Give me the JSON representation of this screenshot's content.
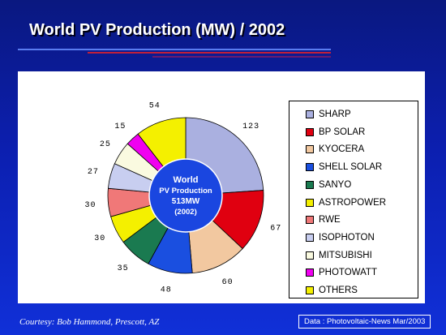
{
  "slide": {
    "title": "World PV Production (MW) / 2002",
    "courtesy": "Courtesy:  Bob Hammond, Prescott, AZ",
    "source": "Data : Photovoltaic-News Mar/2003"
  },
  "chart_data": {
    "type": "pie",
    "title": "World PV Production (MW) / 2002",
    "center_label": [
      "World",
      "PV Production",
      "513MW",
      "(2002)"
    ],
    "slices": [
      {
        "name": "SHARP",
        "value": 123,
        "label": "123",
        "color": "#aab0e0"
      },
      {
        "name": "BP SOLAR",
        "value": 67,
        "label": "67",
        "color": "#e00010"
      },
      {
        "name": "KYOCERA",
        "value": 60,
        "label": "60",
        "color": "#f2c8a0"
      },
      {
        "name": "SHELL SOLAR",
        "value": 48,
        "label": "48",
        "color": "#1a4fe0"
      },
      {
        "name": "SANYO",
        "value": 35,
        "label": "35",
        "color": "#1a7a50"
      },
      {
        "name": "ASTROPOWER",
        "value": 30,
        "label": "30",
        "color": "#f4f000"
      },
      {
        "name": "RWE",
        "value": 30,
        "label": "30",
        "color": "#f07878"
      },
      {
        "name": "ISOPHOTON",
        "value": 27,
        "label": "27",
        "color": "#c8cef0"
      },
      {
        "name": "MITSUBISHI",
        "value": 25,
        "label": "25",
        "color": "#fafae0"
      },
      {
        "name": "PHOTOWATT",
        "value": 15,
        "label": "15",
        "color": "#f000f0"
      },
      {
        "name": "OTHERS",
        "value": 54,
        "label": "54",
        "color": "#f4f000"
      }
    ],
    "legend_position": "right"
  }
}
